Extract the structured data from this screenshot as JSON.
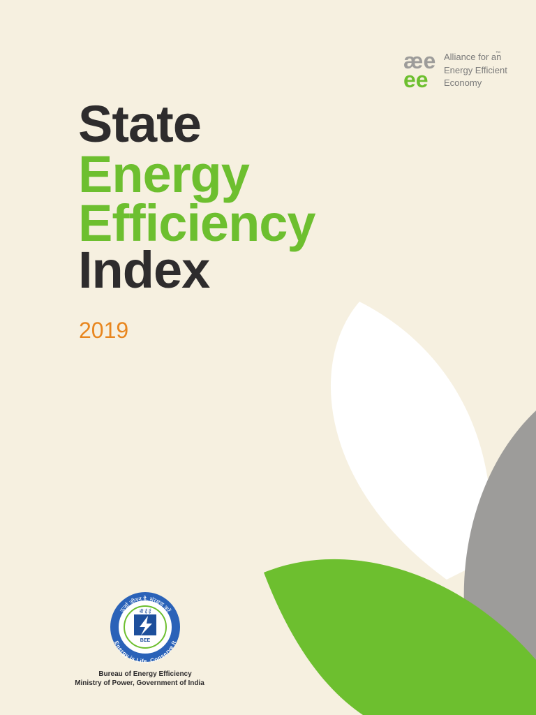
{
  "cover": {
    "title": [
      "State",
      "Energy",
      "Efficiency",
      "Index"
    ],
    "year": "2019",
    "partner_logo": {
      "mark_top": "æe",
      "mark_bottom": "ee",
      "trademark": "™",
      "lines": [
        "Alliance for an",
        "Energy Efficient",
        "Economy"
      ]
    },
    "bee_logo": {
      "ring_top": "ऊर्जा जीवन है, संरक्षण करें",
      "ring_bottom": "Energy is Life, Conserve it",
      "inner_top": "बी ई ई",
      "inner_bottom": "BEE"
    },
    "footer": [
      "Bureau of Energy Efficiency",
      "Ministry of Power, Government of India"
    ]
  }
}
